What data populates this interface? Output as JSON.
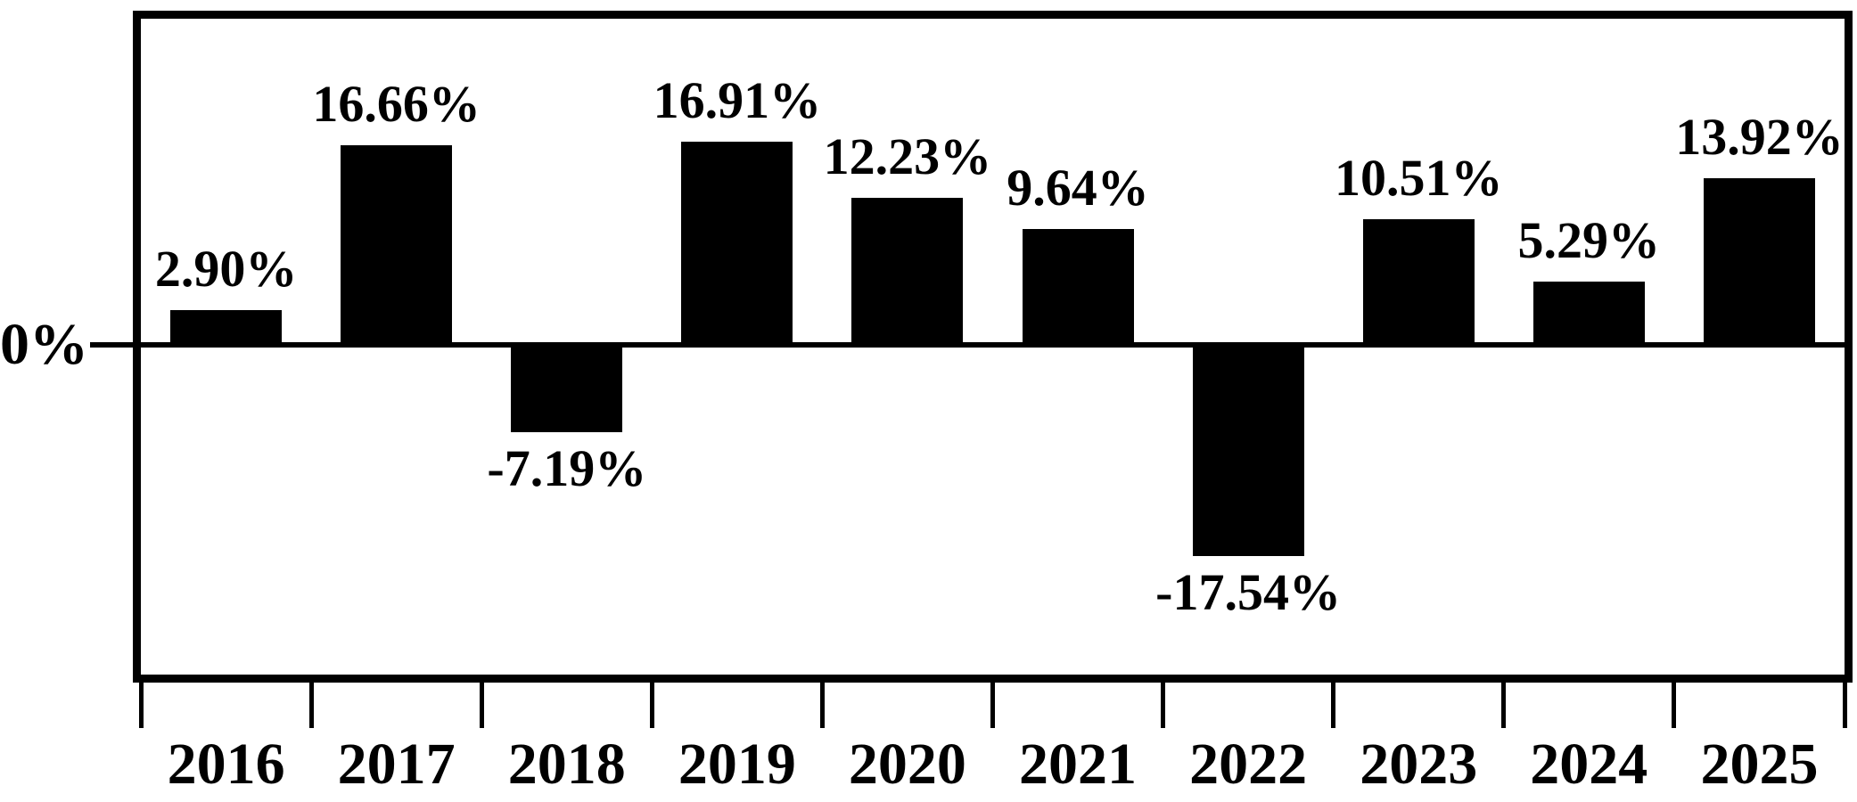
{
  "chart_data": {
    "type": "bar",
    "title": "",
    "xlabel": "",
    "ylabel": "",
    "categories": [
      "2016",
      "2017",
      "2018",
      "2019",
      "2020",
      "2021",
      "2022",
      "2023",
      "2024",
      "2025"
    ],
    "values": [
      2.9,
      16.66,
      -7.19,
      16.91,
      12.23,
      9.64,
      -17.54,
      10.51,
      5.29,
      13.92
    ],
    "value_labels": [
      "2.90%",
      "16.66%",
      "-7.19%",
      "16.91%",
      "12.23%",
      "9.64%",
      "-17.54%",
      "10.51%",
      "5.29%",
      "13.92%"
    ],
    "y_axis": {
      "zero_label": "0%",
      "ylim": [
        -27.5,
        27.5
      ],
      "tick_labels_visible": [
        "0%"
      ]
    },
    "bar_color": "#000000",
    "background_color": "#ffffff",
    "border_color": "#000000",
    "grid": false,
    "legend": false
  }
}
